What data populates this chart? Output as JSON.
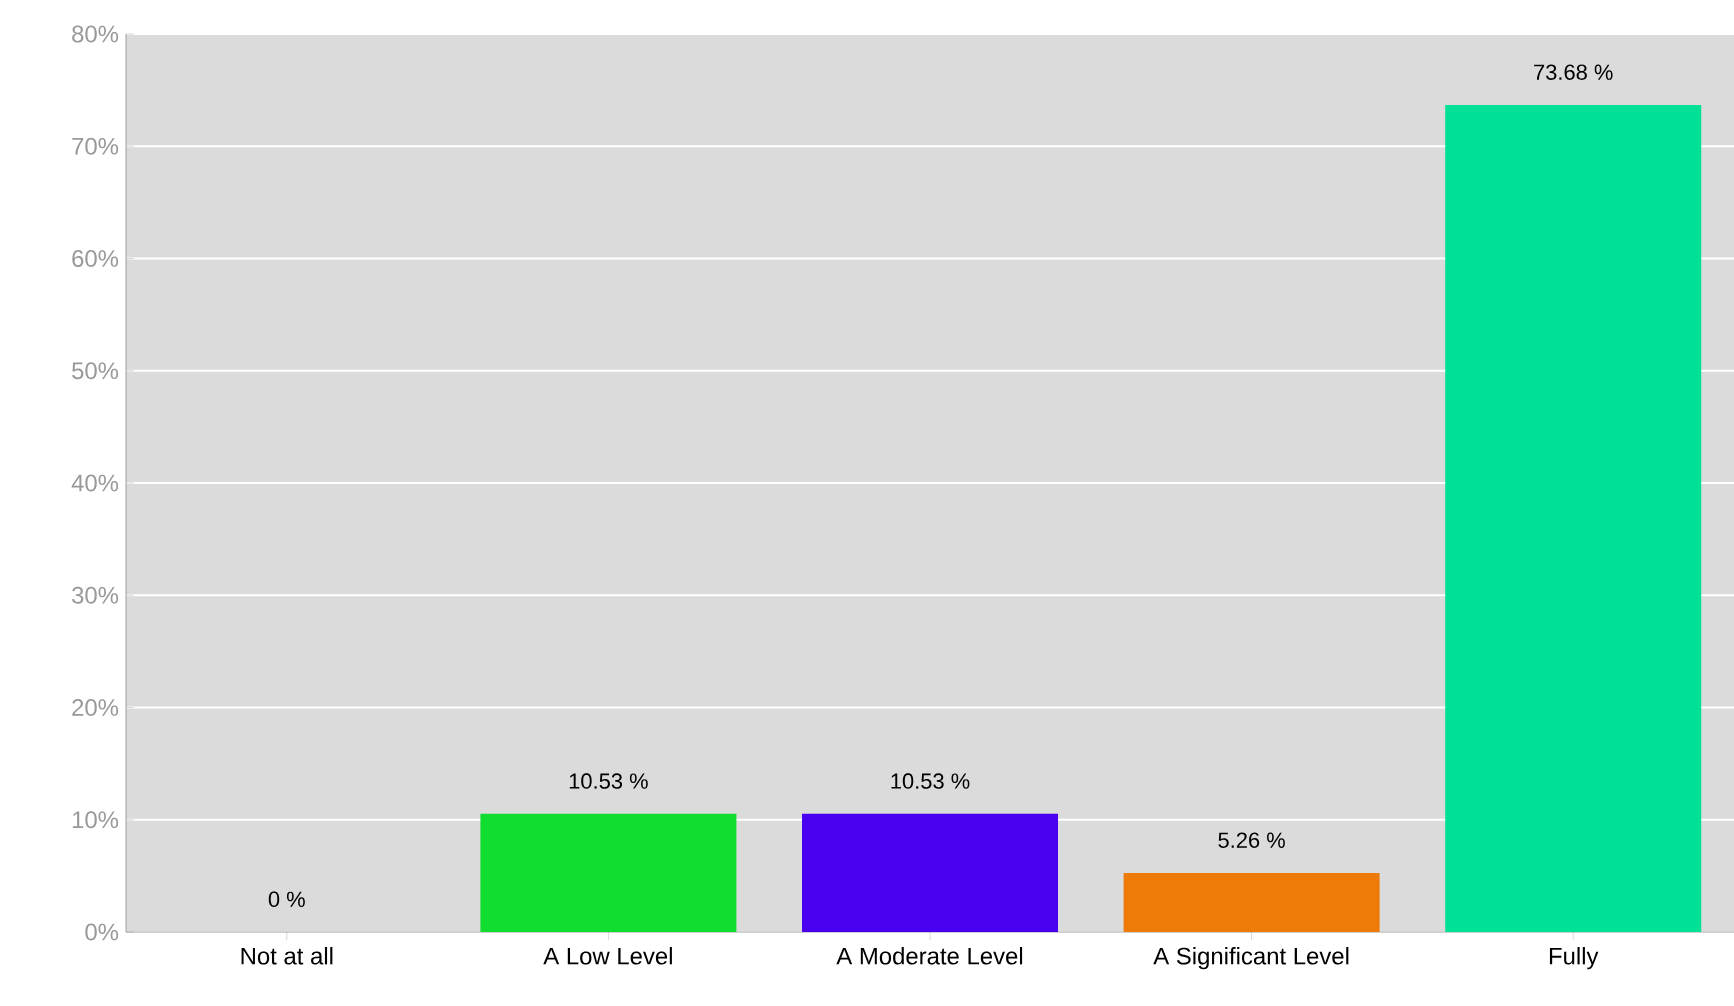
{
  "chart_data": {
    "type": "bar",
    "categories": [
      "Not at all",
      "A Low Level",
      "A Moderate Level",
      "A Significant Level",
      "Fully"
    ],
    "values": [
      0,
      10.53,
      10.53,
      5.26,
      73.68
    ],
    "colors": [
      "#00c040",
      "#10dd30",
      "#4a00f0",
      "#ee7a08",
      "#00e096"
    ],
    "value_labels": [
      "0 %",
      "10.53 %",
      "10.53 %",
      "5.26 %",
      "73.68 %"
    ],
    "ylim": [
      0,
      80
    ],
    "yticks": [
      {
        "value": 0,
        "label": "0%"
      },
      {
        "value": 10,
        "label": "10%"
      },
      {
        "value": 20,
        "label": "20%"
      },
      {
        "value": 30,
        "label": "30%"
      },
      {
        "value": 40,
        "label": "40%"
      },
      {
        "value": 50,
        "label": "50%"
      },
      {
        "value": 60,
        "label": "60%"
      },
      {
        "value": 70,
        "label": "70%"
      },
      {
        "value": 80,
        "label": "80%"
      }
    ],
    "grid": "y"
  }
}
